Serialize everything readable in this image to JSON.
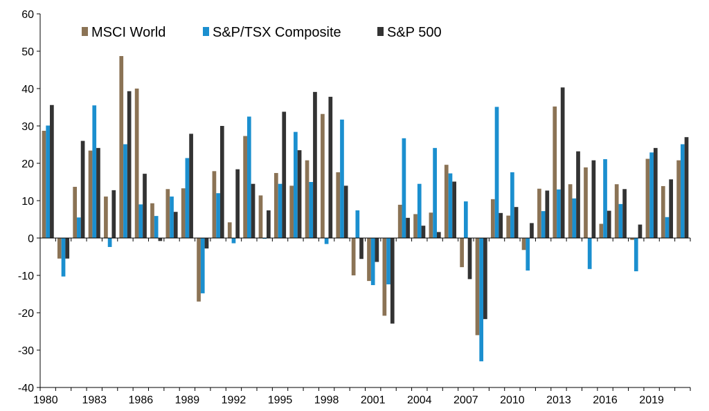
{
  "chart_data": {
    "type": "bar",
    "title": "",
    "xlabel": "",
    "ylabel": "",
    "ylim": [
      -40,
      60
    ],
    "y_ticks": [
      -40,
      -30,
      -20,
      -10,
      0,
      10,
      20,
      30,
      40,
      50,
      60
    ],
    "x_tick_labels": [
      "1980",
      "1983",
      "1986",
      "1989",
      "1992",
      "1995",
      "1998",
      "2001",
      "2004",
      "2007",
      "2010",
      "2013",
      "2016",
      "2019"
    ],
    "grid": false,
    "legend_position": "top-left",
    "categories": [
      "1980",
      "1981",
      "1982",
      "1983",
      "1984",
      "1985",
      "1986",
      "1987",
      "1988",
      "1989",
      "1990",
      "1991",
      "1992",
      "1993",
      "1994",
      "1995",
      "1996",
      "1997",
      "1998",
      "1999",
      "2000",
      "2001",
      "2002",
      "2003",
      "2004",
      "2005",
      "2006",
      "2007",
      "2008",
      "2009",
      "2010",
      "2011",
      "2012",
      "2013",
      "2014",
      "2015",
      "2016",
      "2017",
      "2018",
      "2019",
      "2020",
      "2021"
    ],
    "series": [
      {
        "name": "MSCI World",
        "color": "#8B7355",
        "values": [
          28.7,
          -5.5,
          13.7,
          23.4,
          11.1,
          48.7,
          40.0,
          9.3,
          13.1,
          13.3,
          -17.0,
          17.9,
          4.2,
          27.3,
          11.4,
          17.4,
          14.0,
          20.8,
          33.2,
          17.6,
          -10.0,
          -11.5,
          -20.8,
          8.9,
          6.4,
          6.8,
          19.6,
          -7.8,
          -26.0,
          10.4,
          6.0,
          -3.2,
          13.2,
          35.2,
          14.4,
          18.9,
          3.8,
          14.4,
          -0.5,
          21.2,
          13.9,
          20.8
        ]
      },
      {
        "name": "S&P/TSX Composite",
        "color": "#1B8FCF",
        "values": [
          30.1,
          -10.3,
          5.5,
          35.5,
          -2.4,
          25.1,
          9.0,
          5.9,
          11.1,
          21.4,
          -14.8,
          12.0,
          -1.4,
          32.5,
          -0.2,
          14.5,
          28.4,
          15.0,
          -1.6,
          31.7,
          7.4,
          -12.6,
          -12.4,
          26.7,
          14.5,
          24.1,
          17.3,
          9.8,
          -33.0,
          35.1,
          17.6,
          -8.7,
          7.2,
          13.0,
          10.6,
          -8.3,
          21.1,
          9.1,
          -8.9,
          22.9,
          5.6,
          25.1
        ]
      },
      {
        "name": "S&P 500",
        "color": "#333333",
        "values": [
          35.6,
          -5.5,
          26.0,
          24.1,
          12.8,
          39.3,
          17.2,
          -0.8,
          7.0,
          27.9,
          -2.8,
          30.0,
          18.4,
          14.5,
          7.4,
          33.8,
          23.5,
          39.1,
          37.8,
          14.0,
          -5.6,
          -6.4,
          -22.9,
          5.4,
          3.3,
          1.6,
          15.1,
          -11.0,
          -21.7,
          6.7,
          8.3,
          4.0,
          12.7,
          40.3,
          23.2,
          20.8,
          7.3,
          13.1,
          3.6,
          24.1,
          15.7,
          27.0
        ]
      }
    ]
  }
}
